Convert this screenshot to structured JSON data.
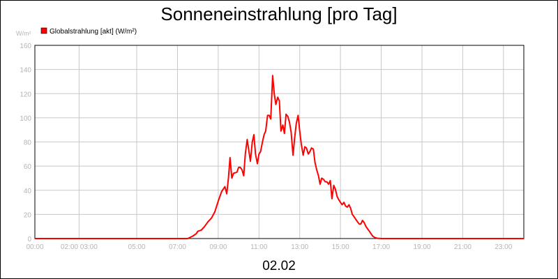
{
  "chart_data": {
    "type": "line",
    "title": "Sonneneinstrahlung [pro Tag]",
    "ylabel": "W/m²",
    "date_label": "02.02",
    "ylim": [
      0,
      160
    ],
    "xlim": [
      0,
      24
    ],
    "y_ticks": [
      0,
      20,
      40,
      60,
      80,
      100,
      120,
      140,
      160
    ],
    "x_ticks": [
      {
        "x": 0,
        "label": "00:00"
      },
      {
        "x": 2.17,
        "label": "02:00 03:00"
      },
      {
        "x": 5,
        "label": "05:00"
      },
      {
        "x": 7,
        "label": "07:00"
      },
      {
        "x": 9,
        "label": "09:00"
      },
      {
        "x": 11,
        "label": "11:00"
      },
      {
        "x": 13,
        "label": "13:00"
      },
      {
        "x": 15,
        "label": "15:00"
      },
      {
        "x": 17,
        "label": "17:00"
      },
      {
        "x": 19,
        "label": "19:00"
      },
      {
        "x": 21,
        "label": "21:00"
      },
      {
        "x": 23,
        "label": "23:00"
      }
    ],
    "grid": true,
    "legend_placement": "top-left",
    "colors": {
      "series": "#ff0000",
      "grid": "#c8c8c8",
      "axis_text": "#b4b4b4"
    },
    "series": [
      {
        "name": "Globalstrahlung [akt] (W/m²)",
        "x": [
          0,
          7.5,
          7.75,
          7.92,
          8.0,
          8.17,
          8.33,
          8.5,
          8.67,
          8.83,
          9.0,
          9.17,
          9.33,
          9.42,
          9.5,
          9.58,
          9.67,
          9.75,
          9.92,
          10.0,
          10.08,
          10.17,
          10.25,
          10.33,
          10.42,
          10.5,
          10.58,
          10.67,
          10.75,
          10.83,
          10.92,
          11.0,
          11.08,
          11.17,
          11.25,
          11.33,
          11.42,
          11.5,
          11.58,
          11.67,
          11.75,
          11.83,
          11.92,
          12.0,
          12.08,
          12.17,
          12.25,
          12.33,
          12.42,
          12.5,
          12.58,
          12.67,
          12.75,
          12.83,
          12.92,
          13.0,
          13.08,
          13.17,
          13.25,
          13.33,
          13.42,
          13.5,
          13.58,
          13.67,
          13.75,
          13.83,
          13.92,
          14.0,
          14.08,
          14.17,
          14.25,
          14.33,
          14.42,
          14.5,
          14.58,
          14.67,
          14.75,
          14.83,
          14.92,
          15.0,
          15.08,
          15.17,
          15.25,
          15.33,
          15.42,
          15.5,
          15.58,
          15.67,
          15.75,
          15.83,
          15.92,
          16.0,
          16.08,
          16.17,
          16.25,
          16.33,
          16.42,
          16.5,
          16.58,
          16.67,
          16.75,
          16.83,
          16.92,
          17.0,
          17.17,
          17.33,
          17.5,
          17.67,
          24
        ],
        "values": [
          0,
          0,
          2,
          4,
          6,
          7,
          10,
          14,
          17,
          22,
          31,
          39,
          43,
          37,
          50,
          67,
          50,
          54,
          55,
          59,
          59,
          57,
          52,
          70,
          82,
          73,
          64,
          80,
          86,
          70,
          62,
          70,
          72,
          80,
          86,
          89,
          102,
          102,
          99,
          135,
          120,
          111,
          117,
          114,
          89,
          94,
          87,
          103,
          101,
          96,
          88,
          69,
          83,
          95,
          102,
          89,
          78,
          69,
          76,
          75,
          70,
          72,
          75,
          74,
          63,
          57,
          52,
          45,
          50,
          49,
          47,
          47,
          45,
          48,
          33,
          44,
          41,
          35,
          32,
          30,
          28,
          30,
          27,
          26,
          28,
          25,
          20,
          18,
          16,
          14,
          12,
          12,
          15,
          13,
          10,
          8,
          6,
          4,
          2,
          1,
          0.5,
          0.2,
          0.1,
          0,
          0,
          0,
          0,
          0,
          0
        ]
      }
    ]
  }
}
